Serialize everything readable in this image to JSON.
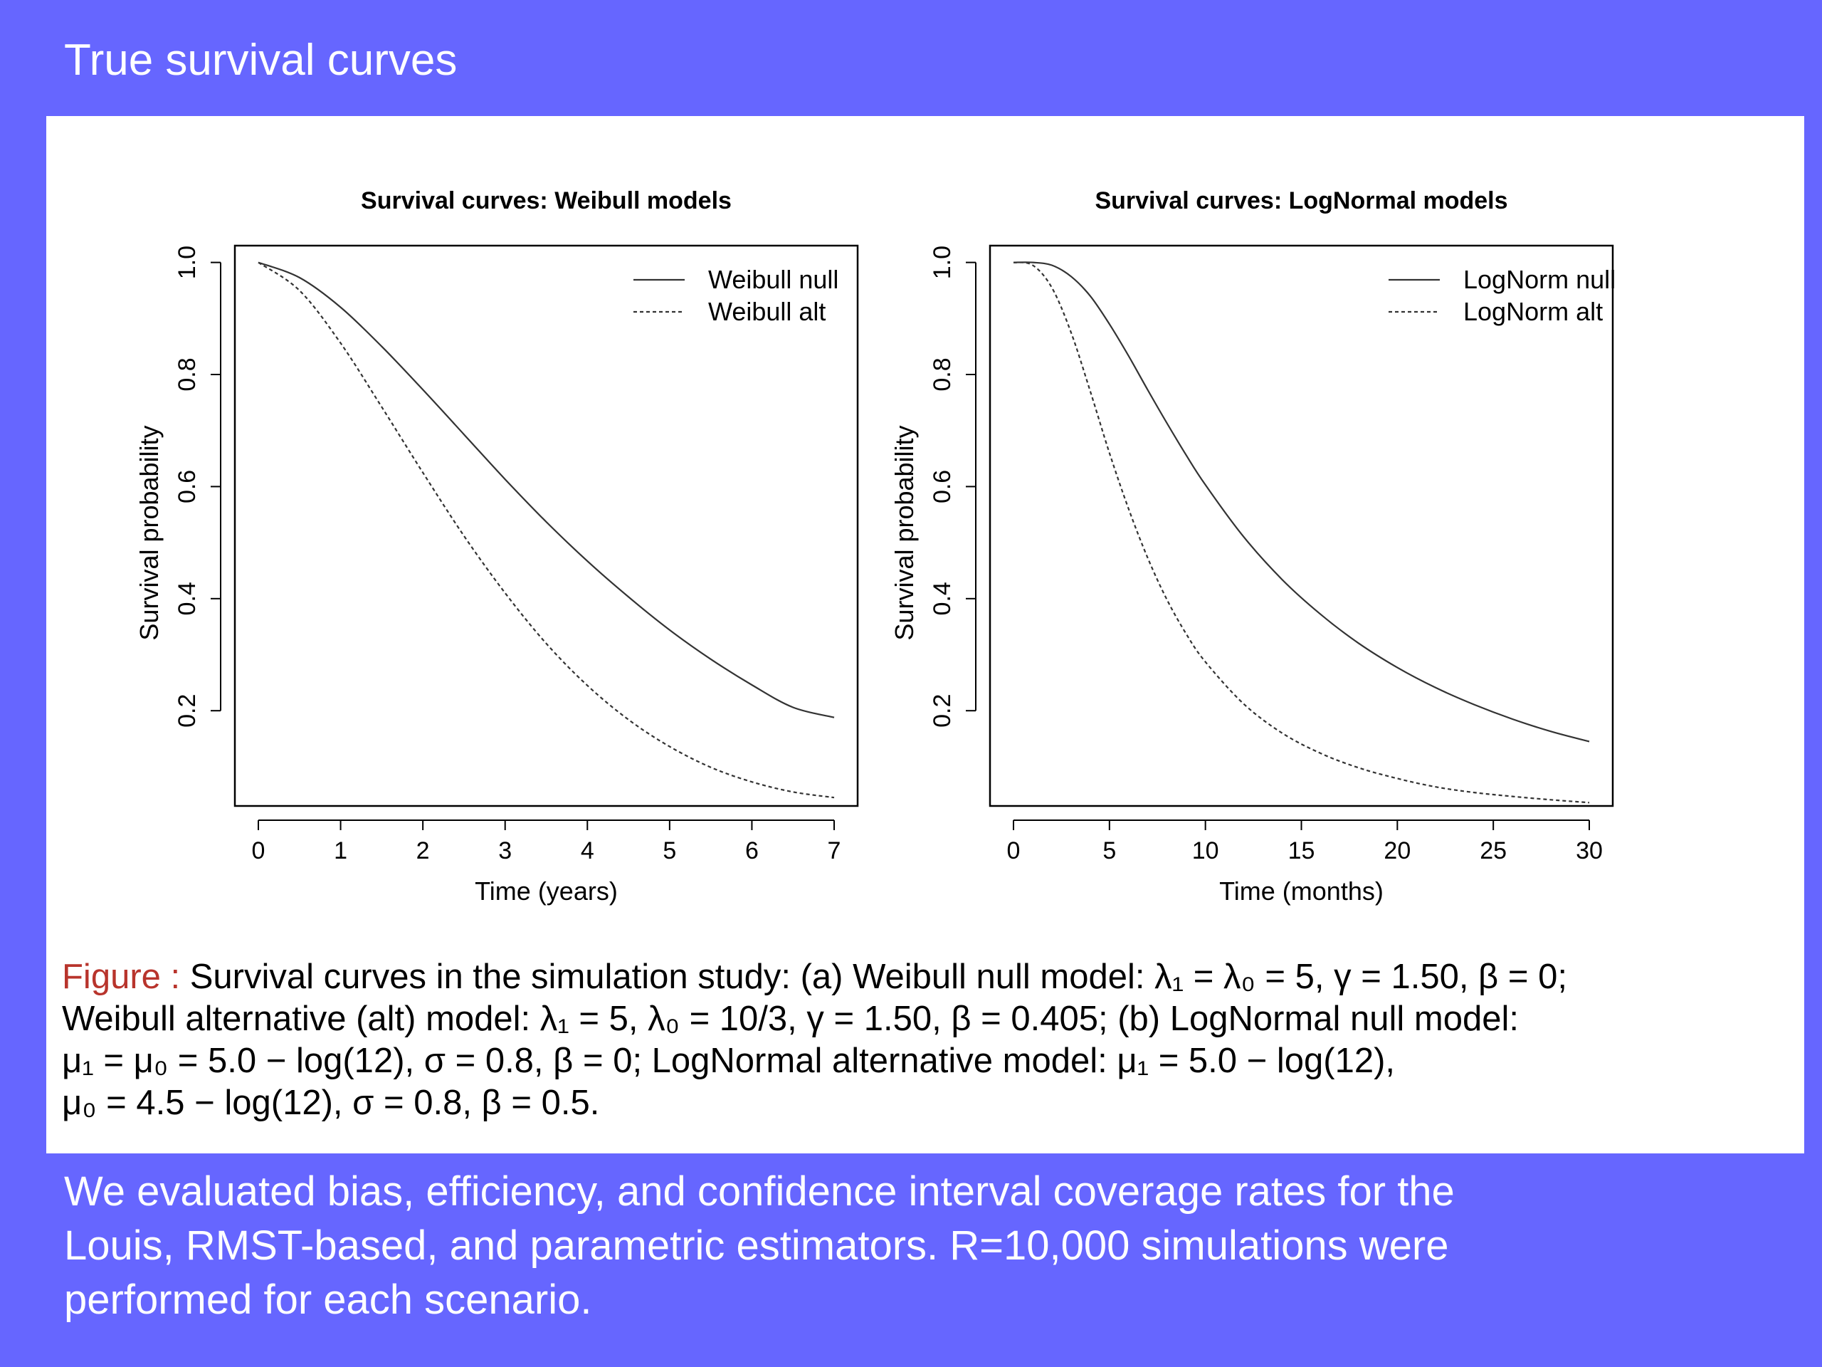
{
  "slide": {
    "title": "True survival curves",
    "background_color": "#6666ff",
    "body_lines": [
      "We evaluated bias, efficiency, and confidence interval coverage rates for the",
      "Louis, RMST-based, and parametric estimators.  R=10,000 simulations were",
      "performed for each scenario."
    ]
  },
  "caption": {
    "label": "Figure :",
    "label_color": "#b8342c",
    "lines": [
      "Survival curves in the simulation study: (a) Weibull null model: λ₁ = λ₀ = 5, γ = 1.50, β = 0;",
      "Weibull alternative (alt) model: λ₁ = 5, λ₀ = 10/3, γ = 1.50, β = 0.405; (b) LogNormal null model:",
      "μ₁ = μ₀ = 5.0 − log(12), σ = 0.8, β = 0; LogNormal alternative model: μ₁ = 5.0 − log(12),",
      "μ₀ = 4.5 − log(12), σ = 0.8, β = 0.5."
    ]
  },
  "chart_data": [
    {
      "type": "line",
      "title": "Survival curves: Weibull models",
      "xlabel": "Time (years)",
      "ylabel": "Survival probability",
      "xlim": [
        0,
        7
      ],
      "ylim": [
        0.03,
        1.03
      ],
      "xticks": [
        0,
        1,
        2,
        3,
        4,
        5,
        6,
        7
      ],
      "xtick_labels": [
        "0",
        "1",
        "2",
        "3",
        "4",
        "5",
        "6",
        "7"
      ],
      "yticks": [
        0.2,
        0.4,
        0.6,
        0.8,
        1.0
      ],
      "ytick_labels": [
        "0.2",
        "0.4",
        "0.6",
        "0.8",
        "1.0"
      ],
      "grid": false,
      "legend_position": "top-right",
      "series": [
        {
          "name": "Weibull null",
          "line_style": "solid",
          "x": [
            0,
            0.5,
            1,
            1.5,
            2,
            2.5,
            3,
            3.5,
            4,
            4.5,
            5,
            5.5,
            6,
            6.5,
            7
          ],
          "y": [
            1.0,
            0.973,
            0.92,
            0.85,
            0.773,
            0.693,
            0.613,
            0.537,
            0.467,
            0.403,
            0.344,
            0.292,
            0.246,
            0.206,
            0.188
          ]
        },
        {
          "name": "Weibull alt",
          "line_style": "dashed",
          "x": [
            0,
            0.5,
            1,
            1.5,
            2,
            2.5,
            3,
            3.5,
            4,
            4.5,
            5,
            5.5,
            6,
            6.5,
            7
          ],
          "y": [
            1.0,
            0.95,
            0.856,
            0.742,
            0.625,
            0.512,
            0.41,
            0.32,
            0.245,
            0.184,
            0.136,
            0.099,
            0.073,
            0.055,
            0.045
          ]
        }
      ]
    },
    {
      "type": "line",
      "title": "Survival curves: LogNormal models",
      "xlabel": "Time (months)",
      "ylabel": "Survival probability",
      "xlim": [
        0,
        30
      ],
      "ylim": [
        0.03,
        1.03
      ],
      "xticks": [
        0,
        5,
        10,
        15,
        20,
        25,
        30
      ],
      "xtick_labels": [
        "0",
        "5",
        "10",
        "15",
        "20",
        "25",
        "30"
      ],
      "yticks": [
        0.2,
        0.4,
        0.6,
        0.8,
        1.0
      ],
      "ytick_labels": [
        "0.2",
        "0.4",
        "0.6",
        "0.8",
        "1.0"
      ],
      "grid": false,
      "legend_position": "top-right",
      "series": [
        {
          "name": "LogNorm null",
          "line_style": "solid",
          "x": [
            0,
            1,
            2,
            3,
            4,
            5,
            6,
            7,
            8,
            9,
            10,
            12,
            14,
            16,
            18,
            20,
            22,
            24,
            26,
            28,
            30
          ],
          "y": [
            1.0,
            1.0,
            0.995,
            0.975,
            0.94,
            0.89,
            0.833,
            0.772,
            0.713,
            0.656,
            0.603,
            0.51,
            0.434,
            0.372,
            0.32,
            0.277,
            0.241,
            0.211,
            0.185,
            0.163,
            0.145
          ]
        },
        {
          "name": "LogNorm alt",
          "line_style": "dashed",
          "x": [
            0,
            1,
            2,
            3,
            4,
            5,
            6,
            7,
            8,
            9,
            10,
            12,
            14,
            16,
            18,
            20,
            22,
            24,
            26,
            28,
            30
          ],
          "y": [
            1.0,
            0.995,
            0.955,
            0.875,
            0.77,
            0.66,
            0.56,
            0.472,
            0.398,
            0.337,
            0.287,
            0.212,
            0.16,
            0.124,
            0.098,
            0.079,
            0.064,
            0.054,
            0.047,
            0.041,
            0.036
          ]
        }
      ]
    }
  ]
}
